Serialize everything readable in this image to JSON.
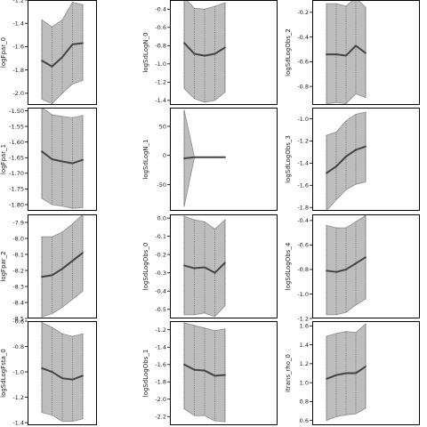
{
  "style": {
    "band_fill": "#bdbdbd",
    "band_edge": "#8c8c8c",
    "line_color": "#444444",
    "divider_color": "#555555",
    "frame_color": "#000000"
  },
  "chart_data": [
    {
      "type": "area",
      "ylabel": "logFpar_0",
      "x": [
        0,
        1,
        2,
        3,
        4
      ],
      "y": [
        -1.72,
        -1.77,
        -1.69,
        -1.58,
        -1.57
      ],
      "lower": [
        -2.05,
        -2.09,
        -2.0,
        -1.92,
        -1.89
      ],
      "upper": [
        -1.37,
        -1.43,
        -1.37,
        -1.22,
        -1.24
      ],
      "ylim": [
        -2.1,
        -1.2
      ],
      "yticks": [
        "-1.2",
        "-1.4",
        "-1.6",
        "-1.8",
        "-2.0"
      ],
      "grid": false
    },
    {
      "type": "area",
      "ylabel": "logSdLogN_0",
      "x": [
        0,
        1,
        2,
        3,
        4
      ],
      "y": [
        -0.77,
        -0.89,
        -0.91,
        -0.89,
        -0.82
      ],
      "lower": [
        -1.27,
        -1.38,
        -1.42,
        -1.4,
        -1.31
      ],
      "upper": [
        -0.27,
        -0.39,
        -0.4,
        -0.37,
        -0.33
      ],
      "ylim": [
        -1.45,
        -0.3
      ],
      "yticks": [
        "-0.4",
        "-0.6",
        "-0.8",
        "-1.0",
        "-1.2",
        "-1.4"
      ],
      "grid": false
    },
    {
      "type": "area",
      "ylabel": "logSdLogObs_2",
      "x": [
        0,
        1,
        2,
        3,
        4
      ],
      "y": [
        -0.54,
        -0.54,
        -0.55,
        -0.47,
        -0.53
      ],
      "lower": [
        -0.94,
        -0.93,
        -0.94,
        -0.86,
        -0.89
      ],
      "upper": [
        -0.13,
        -0.13,
        -0.15,
        -0.08,
        -0.16
      ],
      "ylim": [
        -0.95,
        -0.1
      ],
      "yticks": [
        "-0.2",
        "-0.4",
        "-0.6",
        "-0.8"
      ],
      "grid": false
    },
    {
      "type": "area",
      "ylabel": "logFpar_1",
      "x": [
        0,
        1,
        2,
        3,
        4
      ],
      "y": [
        -1.63,
        -1.655,
        -1.662,
        -1.668,
        -1.657
      ],
      "lower": [
        -1.78,
        -1.8,
        -1.805,
        -1.812,
        -1.81
      ],
      "upper": [
        -1.49,
        -1.513,
        -1.518,
        -1.522,
        -1.515
      ],
      "ylim": [
        -1.82,
        -1.49
      ],
      "yticks": [
        "-1.50",
        "-1.55",
        "-1.60",
        "-1.65",
        "-1.70",
        "-1.75",
        "-1.80"
      ],
      "grid": false
    },
    {
      "type": "area",
      "ylabel": "logSdLogN_1",
      "x": [
        0,
        1,
        2,
        3,
        4
      ],
      "y": [
        -5,
        -3,
        -3,
        -3,
        -3
      ],
      "lower": [
        -88,
        -3.5,
        -3.5,
        -3.5,
        -3.5
      ],
      "upper": [
        78,
        -2.5,
        -2.5,
        -2.5,
        -2.5
      ],
      "ylim": [
        -95,
        82
      ],
      "yticks": [
        "50",
        "0",
        "-50"
      ],
      "grid": false
    },
    {
      "type": "area",
      "ylabel": "logSdLogObs_3",
      "x": [
        0,
        1,
        2,
        3,
        4
      ],
      "y": [
        -1.49,
        -1.43,
        -1.34,
        -1.28,
        -1.25
      ],
      "lower": [
        -1.83,
        -1.73,
        -1.64,
        -1.59,
        -1.57
      ],
      "upper": [
        -1.15,
        -1.12,
        -1.02,
        -0.96,
        -0.94
      ],
      "ylim": [
        -1.83,
        -0.9
      ],
      "yticks": [
        "-1.0",
        "-1.2",
        "-1.4",
        "-1.6",
        "-1.8"
      ],
      "grid": false
    },
    {
      "type": "area",
      "ylabel": "logFpar_2",
      "x": [
        0,
        1,
        2,
        3,
        4
      ],
      "y": [
        -8.24,
        -8.23,
        -8.19,
        -8.14,
        -8.09
      ],
      "lower": [
        -8.49,
        -8.47,
        -8.43,
        -8.38,
        -8.33
      ],
      "upper": [
        -7.99,
        -7.99,
        -7.96,
        -7.91,
        -7.85
      ],
      "ylim": [
        -8.5,
        -7.85
      ],
      "yticks": [
        "-7.9",
        "-8.0",
        "-8.1",
        "-8.2",
        "-8.3",
        "-8.4",
        "-8.5"
      ],
      "grid": false
    },
    {
      "type": "area",
      "ylabel": "logSdLogObs_0",
      "x": [
        0,
        1,
        2,
        3,
        4
      ],
      "y": [
        -0.26,
        -0.275,
        -0.27,
        -0.3,
        -0.245
      ],
      "lower": [
        -0.53,
        -0.53,
        -0.52,
        -0.54,
        -0.48
      ],
      "upper": [
        0.01,
        -0.01,
        -0.02,
        -0.06,
        -0.01
      ],
      "ylim": [
        -0.55,
        0.02
      ],
      "yticks": [
        "0.0",
        "-0.1",
        "-0.2",
        "-0.3",
        "-0.4",
        "-0.5"
      ],
      "grid": false
    },
    {
      "type": "area",
      "ylabel": "logSdLogObs_4",
      "x": [
        0,
        1,
        2,
        3,
        4
      ],
      "y": [
        -0.81,
        -0.82,
        -0.8,
        -0.75,
        -0.7
      ],
      "lower": [
        -1.17,
        -1.17,
        -1.15,
        -1.09,
        -1.04
      ],
      "upper": [
        -0.44,
        -0.46,
        -0.46,
        -0.41,
        -0.36
      ],
      "ylim": [
        -1.2,
        -0.35
      ],
      "yticks": [
        "-0.4",
        "-0.6",
        "-0.8",
        "-1.0",
        "-1.2"
      ],
      "grid": false
    },
    {
      "type": "area",
      "ylabel": "logSdLogFsta_0",
      "x": [
        0,
        1,
        2,
        3,
        4
      ],
      "y": [
        -0.97,
        -1.0,
        -1.05,
        -1.06,
        -1.03
      ],
      "lower": [
        -1.32,
        -1.34,
        -1.39,
        -1.39,
        -1.37
      ],
      "upper": [
        -0.61,
        -0.65,
        -0.7,
        -0.72,
        -0.7
      ],
      "ylim": [
        -1.42,
        -0.6
      ],
      "yticks": [
        "-0.6",
        "-0.8",
        "-1.0",
        "-1.2",
        "-1.4"
      ],
      "grid": false
    },
    {
      "type": "area",
      "ylabel": "logSdLogObs_1",
      "x": [
        0,
        1,
        2,
        3,
        4
      ],
      "y": [
        -1.6,
        -1.66,
        -1.67,
        -1.73,
        -1.72
      ],
      "lower": [
        -2.11,
        -2.19,
        -2.19,
        -2.25,
        -2.26
      ],
      "upper": [
        -1.12,
        -1.15,
        -1.18,
        -1.21,
        -1.19
      ],
      "ylim": [
        -2.3,
        -1.1
      ],
      "yticks": [
        "-1.2",
        "-1.4",
        "-1.6",
        "-1.8",
        "-2.0",
        "-2.2"
      ],
      "grid": false
    },
    {
      "type": "area",
      "ylabel": "itrans_rho_0",
      "x": [
        0,
        1,
        2,
        3,
        4
      ],
      "y": [
        1.04,
        1.08,
        1.1,
        1.1,
        1.17
      ],
      "lower": [
        0.6,
        0.64,
        0.66,
        0.67,
        0.73
      ],
      "upper": [
        1.49,
        1.52,
        1.54,
        1.53,
        1.62
      ],
      "ylim": [
        0.55,
        1.65
      ],
      "yticks": [
        "1.6",
        "1.4",
        "1.2",
        "1.0",
        "0.8",
        "0.6"
      ],
      "grid": false
    }
  ]
}
